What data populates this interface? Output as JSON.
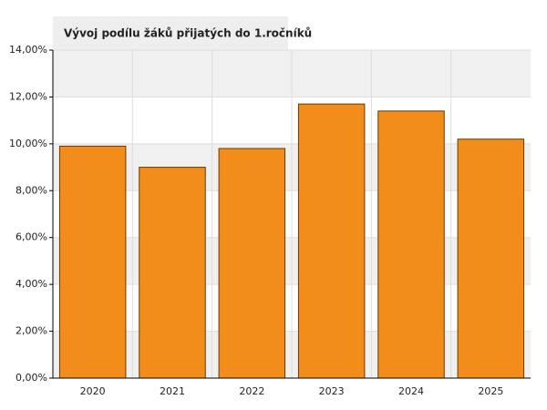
{
  "chart_data": {
    "type": "bar",
    "title": "Vývoj podílu žáků přijatých do 1.ročníků",
    "categories": [
      "2020",
      "2021",
      "2022",
      "2023",
      "2024",
      "2025"
    ],
    "values": [
      9.9,
      9.0,
      9.8,
      11.7,
      11.4,
      10.2
    ],
    "color": "#f28c1a",
    "ylim": [
      0,
      14
    ],
    "yticks": [
      {
        "value": 0,
        "label": "0,00%"
      },
      {
        "value": 2,
        "label": "2,00%"
      },
      {
        "value": 4,
        "label": "4,00%"
      },
      {
        "value": 6,
        "label": "6,00%"
      },
      {
        "value": 8,
        "label": "8,00%"
      },
      {
        "value": 10,
        "label": "10,00%"
      },
      {
        "value": 12,
        "label": "12,00%"
      },
      {
        "value": 14,
        "label": "14,00%"
      }
    ],
    "grid": true
  }
}
